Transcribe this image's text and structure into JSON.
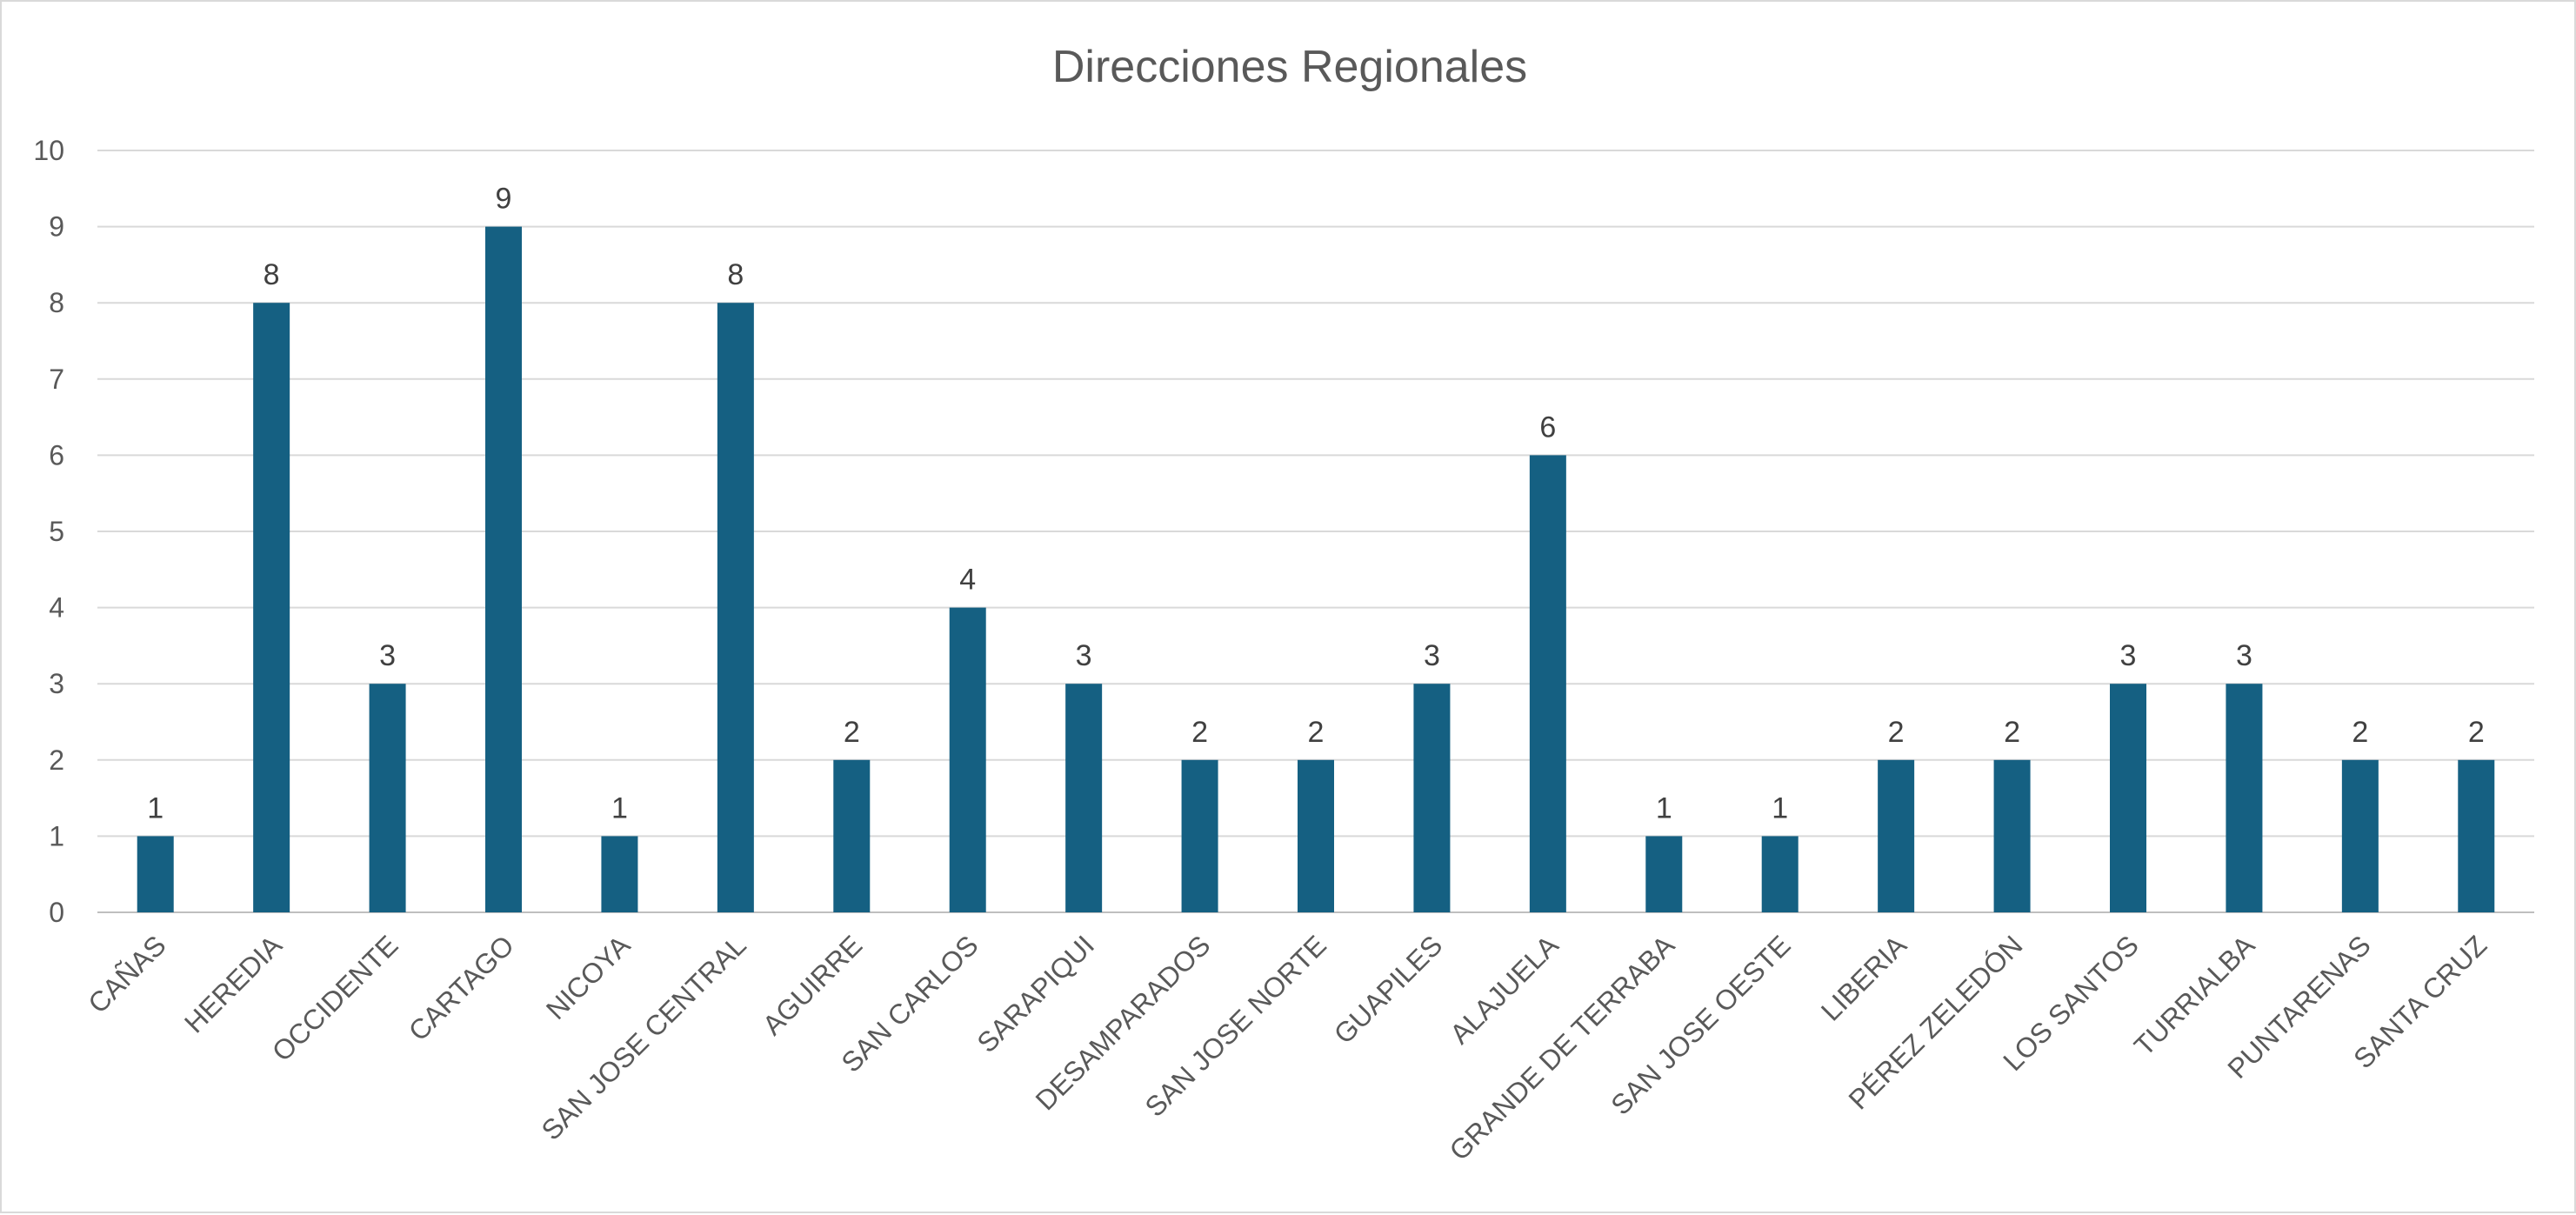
{
  "chart_data": {
    "type": "bar",
    "title": "Direcciones Regionales",
    "xlabel": "",
    "ylabel": "",
    "ylim": [
      0,
      10
    ],
    "yticks": [
      0,
      1,
      2,
      3,
      4,
      5,
      6,
      7,
      8,
      9,
      10
    ],
    "grid": true,
    "legend": "none",
    "bar_color": "#156082",
    "categories": [
      "CAÑAS",
      "HEREDIA",
      "OCCIDENTE",
      "CARTAGO",
      "NICOYA",
      "SAN JOSE CENTRAL",
      "AGUIRRE",
      "SAN CARLOS",
      "SARAPIQUI",
      "DESAMPARADOS",
      "SAN JOSE NORTE",
      "GUAPILES",
      "ALAJUELA",
      "GRANDE DE TERRABA",
      "SAN JOSE OESTE",
      "LIBERIA",
      "PÉREZ ZELEDÓN",
      "LOS SANTOS",
      "TURRIALBA",
      "PUNTARENAS",
      "SANTA CRUZ"
    ],
    "values": [
      1,
      8,
      3,
      9,
      1,
      8,
      2,
      4,
      3,
      2,
      2,
      3,
      6,
      1,
      1,
      2,
      2,
      3,
      3,
      2,
      2
    ]
  }
}
